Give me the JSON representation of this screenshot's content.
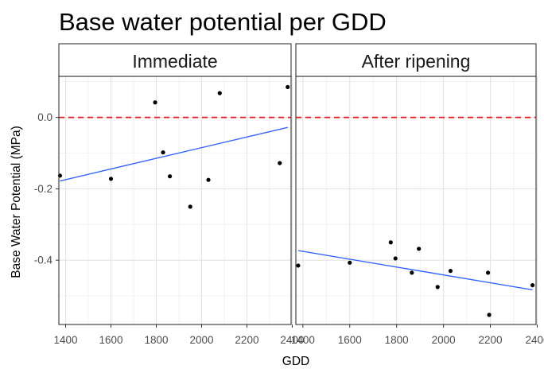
{
  "chart_data": {
    "type": "scatter",
    "title": "Base water potential per GDD",
    "xlabel": "GDD",
    "ylabel": "Base Water Potential (MPa)",
    "xlim": [
      1370,
      2395
    ],
    "ylim": [
      -0.58,
      0.115
    ],
    "x_ticks": [
      1400,
      1600,
      1800,
      2000,
      2200,
      2400
    ],
    "x_tick_labels": [
      "1400",
      "1600",
      "1800",
      "2000",
      "2200",
      "2400"
    ],
    "y_ticks": [
      0.0,
      -0.2,
      -0.4
    ],
    "y_tick_labels": [
      "0.0",
      "-0.2",
      "-0.4"
    ],
    "grid": true,
    "reference_line": {
      "y": 0,
      "color": "#e41a1c",
      "style": "dashed"
    },
    "colors": {
      "points": "#000000",
      "fit_line": "#3366ff",
      "panel_border": "#333333",
      "strip_fill": "#ffffff"
    },
    "facets": [
      {
        "label": "Immediate",
        "points": [
          {
            "x": 1375,
            "y": -0.163
          },
          {
            "x": 1600,
            "y": -0.172
          },
          {
            "x": 1795,
            "y": 0.042
          },
          {
            "x": 1830,
            "y": -0.098
          },
          {
            "x": 1860,
            "y": -0.165
          },
          {
            "x": 1950,
            "y": -0.25
          },
          {
            "x": 2030,
            "y": -0.175
          },
          {
            "x": 2080,
            "y": 0.068
          },
          {
            "x": 2345,
            "y": -0.128
          },
          {
            "x": 2380,
            "y": 0.085
          }
        ],
        "fit": {
          "x": [
            1375,
            2380
          ],
          "y": [
            -0.178,
            -0.028
          ]
        }
      },
      {
        "label": "After ripening",
        "points": [
          {
            "x": 1380,
            "y": -0.415
          },
          {
            "x": 1600,
            "y": -0.407
          },
          {
            "x": 1775,
            "y": -0.35
          },
          {
            "x": 1795,
            "y": -0.395
          },
          {
            "x": 1865,
            "y": -0.435
          },
          {
            "x": 1895,
            "y": -0.368
          },
          {
            "x": 1975,
            "y": -0.475
          },
          {
            "x": 2030,
            "y": -0.43
          },
          {
            "x": 2190,
            "y": -0.435
          },
          {
            "x": 2195,
            "y": -0.553
          },
          {
            "x": 2380,
            "y": -0.47
          }
        ],
        "fit": {
          "x": [
            1380,
            2380
          ],
          "y": [
            -0.373,
            -0.483
          ]
        }
      }
    ]
  }
}
